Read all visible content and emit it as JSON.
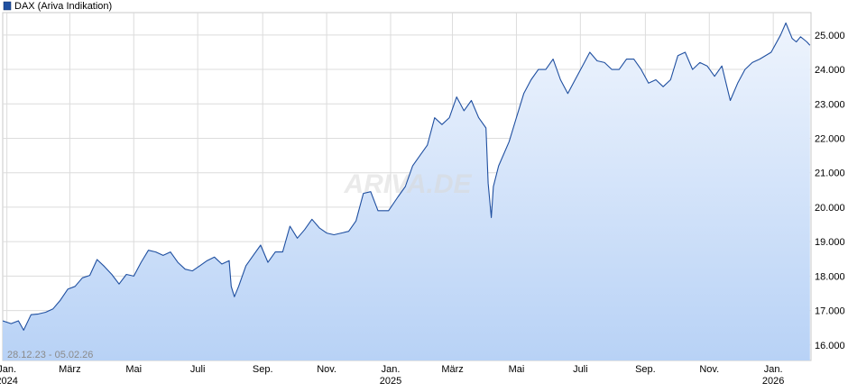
{
  "chart_data": {
    "type": "area",
    "legend": {
      "label": "DAX (Ariva Indikation)",
      "color": "#1f4fa0",
      "position": "top-left"
    },
    "date_range": "28.12.23 - 05.02.26",
    "watermark": "ARIVA.DE",
    "grid": true,
    "ylim": [
      15550,
      25650
    ],
    "y_ticks": [
      {
        "value": 16000,
        "label": "16.000"
      },
      {
        "value": 17000,
        "label": "17.000"
      },
      {
        "value": 18000,
        "label": "18.000"
      },
      {
        "value": 19000,
        "label": "19.000"
      },
      {
        "value": 20000,
        "label": "20.000"
      },
      {
        "value": 21000,
        "label": "21.000"
      },
      {
        "value": 22000,
        "label": "22.000"
      },
      {
        "value": 23000,
        "label": "23.000"
      },
      {
        "value": 24000,
        "label": "24.000"
      },
      {
        "value": 25000,
        "label": "25.000"
      }
    ],
    "x_ticks": [
      {
        "date": "2024-01-01",
        "label": "Jan.",
        "label2": "2024"
      },
      {
        "date": "2024-03-01",
        "label": "März"
      },
      {
        "date": "2024-05-01",
        "label": "Mai"
      },
      {
        "date": "2024-07-01",
        "label": "Juli"
      },
      {
        "date": "2024-09-01",
        "label": "Sep."
      },
      {
        "date": "2024-11-01",
        "label": "Nov."
      },
      {
        "date": "2025-01-01",
        "label": "Jan.",
        "label2": "2025"
      },
      {
        "date": "2025-03-01",
        "label": "März"
      },
      {
        "date": "2025-05-01",
        "label": "Mai"
      },
      {
        "date": "2025-07-01",
        "label": "Juli"
      },
      {
        "date": "2025-09-01",
        "label": "Sep."
      },
      {
        "date": "2025-11-01",
        "label": "Nov."
      },
      {
        "date": "2026-01-01",
        "label": "Jan.",
        "label2": "2026"
      }
    ],
    "xlim": [
      "2023-12-28",
      "2026-02-06"
    ],
    "colors": {
      "line": "#1f4fa0",
      "fill_top": "#eef4fd",
      "fill_bottom": "#b8d2f6",
      "grid": "#dcdcdc"
    },
    "series": [
      {
        "name": "DAX (Ariva Indikation)",
        "points": [
          [
            "2023-12-28",
            16700
          ],
          [
            "2024-01-05",
            16620
          ],
          [
            "2024-01-12",
            16700
          ],
          [
            "2024-01-17",
            16430
          ],
          [
            "2024-01-24",
            16880
          ],
          [
            "2024-01-31",
            16900
          ],
          [
            "2024-02-07",
            16950
          ],
          [
            "2024-02-14",
            17050
          ],
          [
            "2024-02-21",
            17300
          ],
          [
            "2024-02-28",
            17620
          ],
          [
            "2024-03-06",
            17700
          ],
          [
            "2024-03-13",
            17950
          ],
          [
            "2024-03-20",
            18020
          ],
          [
            "2024-03-27",
            18480
          ],
          [
            "2024-04-03",
            18280
          ],
          [
            "2024-04-10",
            18050
          ],
          [
            "2024-04-17",
            17770
          ],
          [
            "2024-04-24",
            18050
          ],
          [
            "2024-05-01",
            18000
          ],
          [
            "2024-05-08",
            18400
          ],
          [
            "2024-05-15",
            18750
          ],
          [
            "2024-05-22",
            18700
          ],
          [
            "2024-05-29",
            18600
          ],
          [
            "2024-06-05",
            18700
          ],
          [
            "2024-06-12",
            18400
          ],
          [
            "2024-06-19",
            18200
          ],
          [
            "2024-06-26",
            18150
          ],
          [
            "2024-07-03",
            18300
          ],
          [
            "2024-07-10",
            18450
          ],
          [
            "2024-07-17",
            18550
          ],
          [
            "2024-07-24",
            18350
          ],
          [
            "2024-07-31",
            18450
          ],
          [
            "2024-08-02",
            17700
          ],
          [
            "2024-08-05",
            17400
          ],
          [
            "2024-08-09",
            17700
          ],
          [
            "2024-08-16",
            18300
          ],
          [
            "2024-08-23",
            18600
          ],
          [
            "2024-08-30",
            18900
          ],
          [
            "2024-09-06",
            18400
          ],
          [
            "2024-09-13",
            18700
          ],
          [
            "2024-09-20",
            18700
          ],
          [
            "2024-09-27",
            19450
          ],
          [
            "2024-10-04",
            19100
          ],
          [
            "2024-10-11",
            19350
          ],
          [
            "2024-10-18",
            19650
          ],
          [
            "2024-10-25",
            19400
          ],
          [
            "2024-11-01",
            19250
          ],
          [
            "2024-11-08",
            19200
          ],
          [
            "2024-11-15",
            19250
          ],
          [
            "2024-11-22",
            19300
          ],
          [
            "2024-11-29",
            19600
          ],
          [
            "2024-12-06",
            20400
          ],
          [
            "2024-12-13",
            20450
          ],
          [
            "2024-12-20",
            19900
          ],
          [
            "2024-12-30",
            19900
          ],
          [
            "2025-01-08",
            20300
          ],
          [
            "2025-01-15",
            20600
          ],
          [
            "2025-01-22",
            21200
          ],
          [
            "2025-01-29",
            21500
          ],
          [
            "2025-02-05",
            21800
          ],
          [
            "2025-02-12",
            22600
          ],
          [
            "2025-02-19",
            22400
          ],
          [
            "2025-02-26",
            22600
          ],
          [
            "2025-03-05",
            23200
          ],
          [
            "2025-03-12",
            22800
          ],
          [
            "2025-03-19",
            23100
          ],
          [
            "2025-03-26",
            22600
          ],
          [
            "2025-04-02",
            22300
          ],
          [
            "2025-04-04",
            20700
          ],
          [
            "2025-04-07",
            19700
          ],
          [
            "2025-04-09",
            20600
          ],
          [
            "2025-04-14",
            21200
          ],
          [
            "2025-04-24",
            21900
          ],
          [
            "2025-05-01",
            22600
          ],
          [
            "2025-05-08",
            23300
          ],
          [
            "2025-05-15",
            23700
          ],
          [
            "2025-05-22",
            24000
          ],
          [
            "2025-05-29",
            24000
          ],
          [
            "2025-06-05",
            24300
          ],
          [
            "2025-06-12",
            23700
          ],
          [
            "2025-06-19",
            23300
          ],
          [
            "2025-06-26",
            23700
          ],
          [
            "2025-07-03",
            24100
          ],
          [
            "2025-07-10",
            24500
          ],
          [
            "2025-07-17",
            24250
          ],
          [
            "2025-07-24",
            24200
          ],
          [
            "2025-07-31",
            24000
          ],
          [
            "2025-08-07",
            24000
          ],
          [
            "2025-08-14",
            24300
          ],
          [
            "2025-08-21",
            24300
          ],
          [
            "2025-08-28",
            24000
          ],
          [
            "2025-09-04",
            23600
          ],
          [
            "2025-09-11",
            23700
          ],
          [
            "2025-09-18",
            23500
          ],
          [
            "2025-09-25",
            23700
          ],
          [
            "2025-10-02",
            24400
          ],
          [
            "2025-10-09",
            24500
          ],
          [
            "2025-10-16",
            24000
          ],
          [
            "2025-10-23",
            24200
          ],
          [
            "2025-10-30",
            24100
          ],
          [
            "2025-11-06",
            23800
          ],
          [
            "2025-11-13",
            24100
          ],
          [
            "2025-11-21",
            23100
          ],
          [
            "2025-11-28",
            23600
          ],
          [
            "2025-12-05",
            24000
          ],
          [
            "2025-12-12",
            24200
          ],
          [
            "2025-12-19",
            24300
          ],
          [
            "2025-12-30",
            24500
          ],
          [
            "2026-01-08",
            25000
          ],
          [
            "2026-01-13",
            25350
          ],
          [
            "2026-01-19",
            24900
          ],
          [
            "2026-01-23",
            24800
          ],
          [
            "2026-01-27",
            24950
          ],
          [
            "2026-02-02",
            24800
          ],
          [
            "2026-02-05",
            24700
          ]
        ]
      }
    ]
  }
}
